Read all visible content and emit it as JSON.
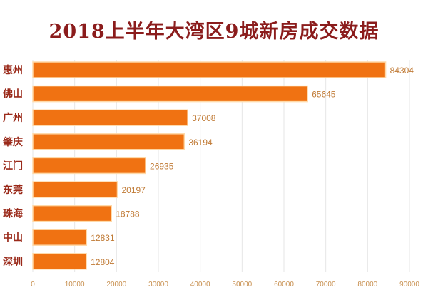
{
  "chart_data": {
    "type": "bar",
    "orientation": "horizontal",
    "title": "2018上半年大湾区9城新房成交数据",
    "categories": [
      "惠州",
      "佛山",
      "广州",
      "肇庆",
      "江门",
      "东莞",
      "珠海",
      "中山",
      "深圳"
    ],
    "values": [
      84304,
      65645,
      37008,
      36194,
      26935,
      20197,
      18788,
      12831,
      12804
    ],
    "xlim": [
      0,
      90000
    ],
    "xticks": [
      "0",
      "10000",
      "20000",
      "30000",
      "40000",
      "50000",
      "60000",
      "70000",
      "80000",
      "90000"
    ],
    "grid": true,
    "legend": "none",
    "colors": {
      "bar": "#f07212",
      "bar_border": "#ffd9a8",
      "title": "#8b1c1c",
      "category_label": "#9a2a1a",
      "value_label": "#c07a35",
      "tick_label": "#c89050",
      "grid": "#e6e6e6"
    }
  }
}
